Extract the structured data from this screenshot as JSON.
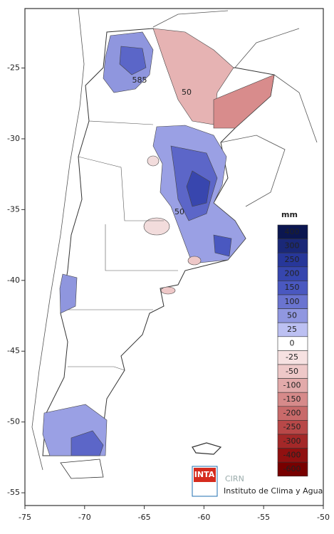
{
  "map": {
    "xticks": [
      -75,
      -70,
      -65,
      -60,
      -55,
      -50
    ],
    "yticks": [
      -25,
      -30,
      -35,
      -40,
      -45,
      -50,
      -55
    ],
    "xlim": [
      -75,
      -50
    ],
    "ylim": [
      -55.9,
      -20.8
    ],
    "legend": {
      "title": "mm",
      "entries": [
        {
          "value": 400,
          "color": "#0b1650"
        },
        {
          "value": 300,
          "color": "#1a2878"
        },
        {
          "value": 250,
          "color": "#27379a"
        },
        {
          "value": 200,
          "color": "#3646ae"
        },
        {
          "value": 150,
          "color": "#4a58c0"
        },
        {
          "value": 100,
          "color": "#6a74d0"
        },
        {
          "value": 50,
          "color": "#9097e0"
        },
        {
          "value": 25,
          "color": "#bcc0f2"
        },
        {
          "value": 0,
          "color": "#ffffff"
        },
        {
          "value": -25,
          "color": "#f6e1e1"
        },
        {
          "value": -50,
          "color": "#eec8c8"
        },
        {
          "value": -100,
          "color": "#e2aaaa"
        },
        {
          "value": -150,
          "color": "#d68a8a"
        },
        {
          "value": -200,
          "color": "#c86a6a"
        },
        {
          "value": -250,
          "color": "#b84848"
        },
        {
          "value": -300,
          "color": "#a42828"
        },
        {
          "value": -400,
          "color": "#901010"
        },
        {
          "value": -600,
          "color": "#780000"
        }
      ]
    },
    "contour_labels": [
      "585",
      "50",
      "50"
    ],
    "logo": {
      "name": "INTA",
      "org": "CIRN",
      "subtitle": "Instituto de Clima y Agua"
    }
  }
}
